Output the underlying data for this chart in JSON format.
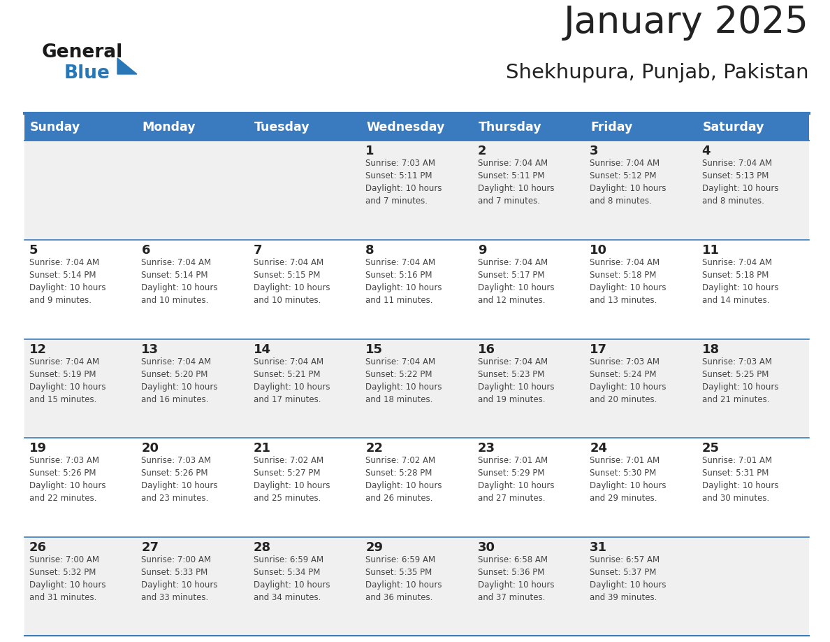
{
  "title": "January 2025",
  "subtitle": "Shekhupura, Punjab, Pakistan",
  "days_of_week": [
    "Sunday",
    "Monday",
    "Tuesday",
    "Wednesday",
    "Thursday",
    "Friday",
    "Saturday"
  ],
  "header_bg": "#3a7bbf",
  "header_text": "#ffffff",
  "cell_bg_odd": "#f0f0f0",
  "cell_bg_even": "#ffffff",
  "border_color": "#3a7bbf",
  "text_color": "#444444",
  "day_number_color": "#222222",
  "logo_general_color": "#1a1a1a",
  "logo_blue_color": "#2878b8",
  "calendar_data": [
    [
      {
        "day": null,
        "text": ""
      },
      {
        "day": null,
        "text": ""
      },
      {
        "day": null,
        "text": ""
      },
      {
        "day": 1,
        "text": "Sunrise: 7:03 AM\nSunset: 5:11 PM\nDaylight: 10 hours\nand 7 minutes."
      },
      {
        "day": 2,
        "text": "Sunrise: 7:04 AM\nSunset: 5:11 PM\nDaylight: 10 hours\nand 7 minutes."
      },
      {
        "day": 3,
        "text": "Sunrise: 7:04 AM\nSunset: 5:12 PM\nDaylight: 10 hours\nand 8 minutes."
      },
      {
        "day": 4,
        "text": "Sunrise: 7:04 AM\nSunset: 5:13 PM\nDaylight: 10 hours\nand 8 minutes."
      }
    ],
    [
      {
        "day": 5,
        "text": "Sunrise: 7:04 AM\nSunset: 5:14 PM\nDaylight: 10 hours\nand 9 minutes."
      },
      {
        "day": 6,
        "text": "Sunrise: 7:04 AM\nSunset: 5:14 PM\nDaylight: 10 hours\nand 10 minutes."
      },
      {
        "day": 7,
        "text": "Sunrise: 7:04 AM\nSunset: 5:15 PM\nDaylight: 10 hours\nand 10 minutes."
      },
      {
        "day": 8,
        "text": "Sunrise: 7:04 AM\nSunset: 5:16 PM\nDaylight: 10 hours\nand 11 minutes."
      },
      {
        "day": 9,
        "text": "Sunrise: 7:04 AM\nSunset: 5:17 PM\nDaylight: 10 hours\nand 12 minutes."
      },
      {
        "day": 10,
        "text": "Sunrise: 7:04 AM\nSunset: 5:18 PM\nDaylight: 10 hours\nand 13 minutes."
      },
      {
        "day": 11,
        "text": "Sunrise: 7:04 AM\nSunset: 5:18 PM\nDaylight: 10 hours\nand 14 minutes."
      }
    ],
    [
      {
        "day": 12,
        "text": "Sunrise: 7:04 AM\nSunset: 5:19 PM\nDaylight: 10 hours\nand 15 minutes."
      },
      {
        "day": 13,
        "text": "Sunrise: 7:04 AM\nSunset: 5:20 PM\nDaylight: 10 hours\nand 16 minutes."
      },
      {
        "day": 14,
        "text": "Sunrise: 7:04 AM\nSunset: 5:21 PM\nDaylight: 10 hours\nand 17 minutes."
      },
      {
        "day": 15,
        "text": "Sunrise: 7:04 AM\nSunset: 5:22 PM\nDaylight: 10 hours\nand 18 minutes."
      },
      {
        "day": 16,
        "text": "Sunrise: 7:04 AM\nSunset: 5:23 PM\nDaylight: 10 hours\nand 19 minutes."
      },
      {
        "day": 17,
        "text": "Sunrise: 7:03 AM\nSunset: 5:24 PM\nDaylight: 10 hours\nand 20 minutes."
      },
      {
        "day": 18,
        "text": "Sunrise: 7:03 AM\nSunset: 5:25 PM\nDaylight: 10 hours\nand 21 minutes."
      }
    ],
    [
      {
        "day": 19,
        "text": "Sunrise: 7:03 AM\nSunset: 5:26 PM\nDaylight: 10 hours\nand 22 minutes."
      },
      {
        "day": 20,
        "text": "Sunrise: 7:03 AM\nSunset: 5:26 PM\nDaylight: 10 hours\nand 23 minutes."
      },
      {
        "day": 21,
        "text": "Sunrise: 7:02 AM\nSunset: 5:27 PM\nDaylight: 10 hours\nand 25 minutes."
      },
      {
        "day": 22,
        "text": "Sunrise: 7:02 AM\nSunset: 5:28 PM\nDaylight: 10 hours\nand 26 minutes."
      },
      {
        "day": 23,
        "text": "Sunrise: 7:01 AM\nSunset: 5:29 PM\nDaylight: 10 hours\nand 27 minutes."
      },
      {
        "day": 24,
        "text": "Sunrise: 7:01 AM\nSunset: 5:30 PM\nDaylight: 10 hours\nand 29 minutes."
      },
      {
        "day": 25,
        "text": "Sunrise: 7:01 AM\nSunset: 5:31 PM\nDaylight: 10 hours\nand 30 minutes."
      }
    ],
    [
      {
        "day": 26,
        "text": "Sunrise: 7:00 AM\nSunset: 5:32 PM\nDaylight: 10 hours\nand 31 minutes."
      },
      {
        "day": 27,
        "text": "Sunrise: 7:00 AM\nSunset: 5:33 PM\nDaylight: 10 hours\nand 33 minutes."
      },
      {
        "day": 28,
        "text": "Sunrise: 6:59 AM\nSunset: 5:34 PM\nDaylight: 10 hours\nand 34 minutes."
      },
      {
        "day": 29,
        "text": "Sunrise: 6:59 AM\nSunset: 5:35 PM\nDaylight: 10 hours\nand 36 minutes."
      },
      {
        "day": 30,
        "text": "Sunrise: 6:58 AM\nSunset: 5:36 PM\nDaylight: 10 hours\nand 37 minutes."
      },
      {
        "day": 31,
        "text": "Sunrise: 6:57 AM\nSunset: 5:37 PM\nDaylight: 10 hours\nand 39 minutes."
      },
      {
        "day": null,
        "text": ""
      }
    ]
  ],
  "figsize": [
    11.88,
    9.18
  ],
  "dpi": 100
}
